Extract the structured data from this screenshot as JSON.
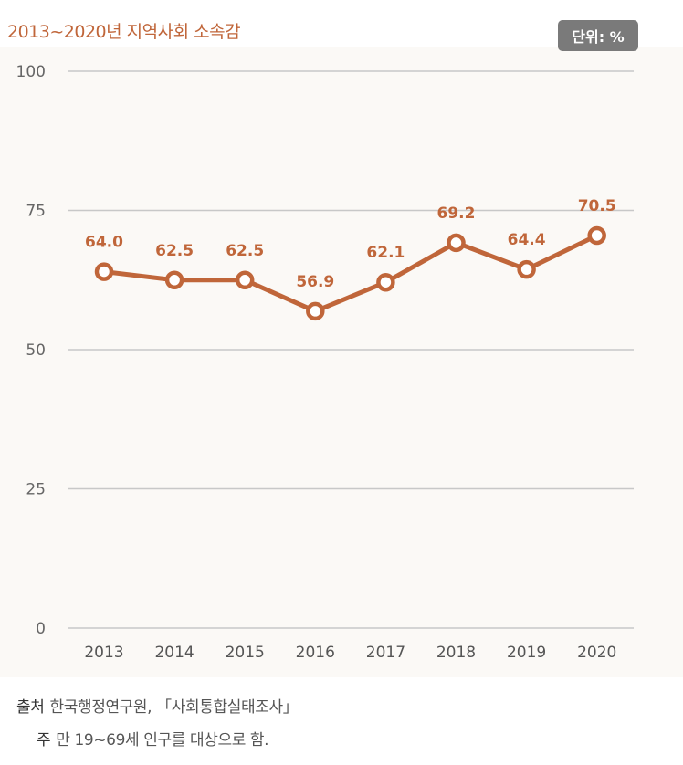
{
  "unit_badge": "단위: %",
  "source": {
    "label": "출처",
    "text": "한국행정연구원, 「사회통합실태조사」"
  },
  "note": {
    "label": "주",
    "text": "만 19~69세 인구를 대상으로 함."
  },
  "colors": {
    "accent": "#c0663a",
    "grid": "#c8c8c8",
    "badge": "#7a7a7a"
  },
  "chart_data": {
    "type": "line",
    "title": "2013~2020년 지역사회 소속감",
    "xlabel": "",
    "ylabel": "",
    "ylim": [
      0,
      100
    ],
    "yticks": [
      "0",
      "25",
      "50",
      "75",
      "100"
    ],
    "grid": true,
    "categories": [
      "2013",
      "2014",
      "2015",
      "2016",
      "2017",
      "2018",
      "2019",
      "2020"
    ],
    "series": [
      {
        "values": [
          64.0,
          62.5,
          62.5,
          56.9,
          62.1,
          69.2,
          64.4,
          70.5
        ],
        "labels": [
          "64.0",
          "62.5",
          "62.5",
          "56.9",
          "62.1",
          "69.2",
          "64.4",
          "70.5"
        ]
      }
    ]
  }
}
